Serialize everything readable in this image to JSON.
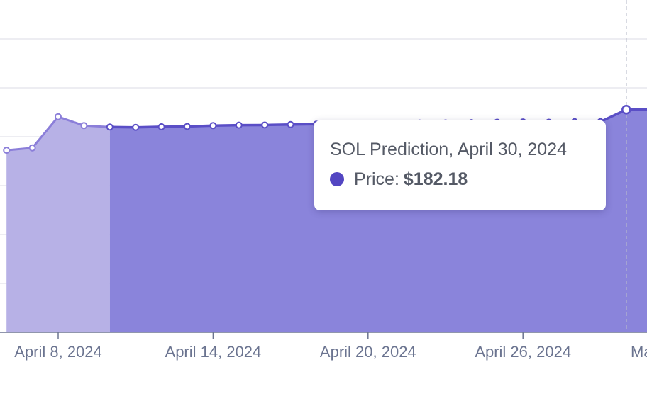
{
  "chart_data": {
    "type": "area",
    "series": [
      {
        "name": "SOL Prediction",
        "x": [
          "2024-04-06",
          "2024-04-07",
          "2024-04-08",
          "2024-04-09",
          "2024-04-10",
          "2024-04-11",
          "2024-04-12",
          "2024-04-13",
          "2024-04-14",
          "2024-04-15",
          "2024-04-16",
          "2024-04-17",
          "2024-04-18",
          "2024-04-19",
          "2024-04-20",
          "2024-04-21",
          "2024-04-22",
          "2024-04-23",
          "2024-04-24",
          "2024-04-25",
          "2024-04-26",
          "2024-04-27",
          "2024-04-28",
          "2024-04-29",
          "2024-04-30",
          "2024-05-01"
        ],
        "values": [
          148.9,
          150.9,
          176.4,
          169.1,
          168.0,
          167.7,
          168.2,
          168.4,
          169.1,
          169.5,
          169.6,
          170.0,
          170.3,
          170.4,
          170.2,
          170.9,
          171.2,
          171.3,
          171.5,
          171.9,
          172.1,
          171.9,
          172.3,
          172.3,
          182.18,
          182.3
        ]
      }
    ],
    "xlabel": "",
    "ylabel": "",
    "x_ticks": [
      "April 8, 2024",
      "April 14, 2024",
      "April 20, 2024",
      "April 26, 2024",
      "Ma"
    ],
    "ylim": [
      0,
      240
    ],
    "grid": true,
    "colors": {
      "line": "#5a4ec6",
      "area": "#8a84db",
      "area_light": "#b7b1e6",
      "grid": "#e7e7ee",
      "axis": "#6b7490"
    }
  },
  "tooltip": {
    "title": "SOL Prediction, April 30, 2024",
    "label": "Price:",
    "value": "$182.18",
    "dot_color": "#5346c2"
  }
}
